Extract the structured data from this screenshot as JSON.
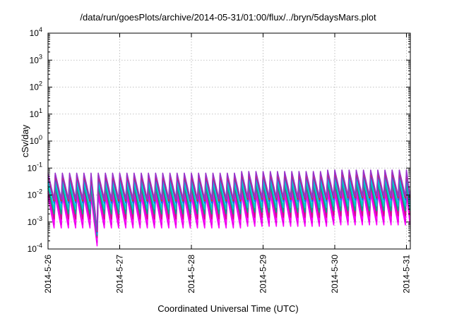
{
  "chart_data": {
    "type": "line",
    "title": "/data/run/goesPlots/archive/2014-05-31/01:00/flux/../bryn/5daysMars.plot",
    "xlabel": "Coordinated Universal Time (UTC)",
    "ylabel": "cSv/day",
    "x_ticks": [
      "2014-5-26",
      "2014-5-27",
      "2014-5-28",
      "2014-5-29",
      "2014-5-30",
      "2014-5-31"
    ],
    "x_range_days": [
      0,
      5.05
    ],
    "y_scale": "log",
    "ylim": [
      0.0001,
      10000
    ],
    "y_ticks": [
      {
        "base": "10",
        "exp": "-4"
      },
      {
        "base": "10",
        "exp": "-3"
      },
      {
        "base": "10",
        "exp": "-2"
      },
      {
        "base": "10",
        "exp": "-1"
      },
      {
        "base": "10",
        "exp": "0"
      },
      {
        "base": "10",
        "exp": "1"
      },
      {
        "base": "10",
        "exp": "2"
      },
      {
        "base": "10",
        "exp": "3"
      },
      {
        "base": "10",
        "exp": "4"
      }
    ],
    "grid": true,
    "sawtooth_period_days": 0.1,
    "dip": {
      "day": 0.63,
      "min_value": 0.00013
    },
    "series": [
      {
        "color": "#ff00ff",
        "low": 0.0006,
        "high": 0.009
      },
      {
        "color": "#dd00dd",
        "low": 0.0008,
        "high": 0.012
      },
      {
        "color": "#ff00ff",
        "low": 0.001,
        "high": 0.014
      },
      {
        "color": "#cc1188",
        "low": 0.0013,
        "high": 0.018
      },
      {
        "color": "#00aa88",
        "low": 0.002,
        "high": 0.022
      },
      {
        "color": "#00cccc",
        "low": 0.003,
        "high": 0.03
      },
      {
        "color": "#1166ff",
        "low": 0.005,
        "high": 0.045
      },
      {
        "color": "#ee2222",
        "low": 0.006,
        "high": 0.055
      },
      {
        "color": "#9933cc",
        "low": 0.007,
        "high": 0.065
      }
    ]
  }
}
